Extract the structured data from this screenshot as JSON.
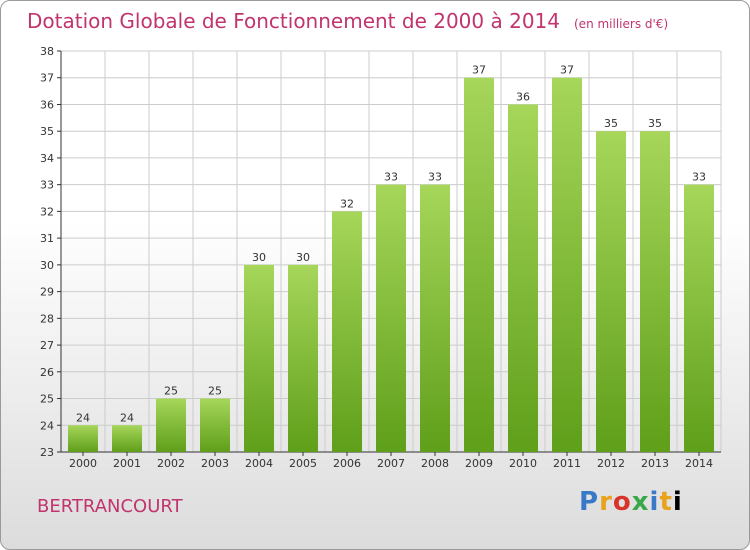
{
  "title": "Dotation Globale de Fonctionnement de 2000 à 2014",
  "unit": "(en milliers d'€)",
  "commune": "BERTRANCOURT",
  "logo": "Proxiti",
  "colors": {
    "title": "#c1346e",
    "bar_light": "#a6d65a",
    "bar_dark": "#5f9f1a",
    "grid": "#cccccc",
    "axis": "#333333"
  },
  "chart_data": {
    "type": "bar",
    "categories": [
      "2000",
      "2001",
      "2002",
      "2003",
      "2004",
      "2005",
      "2006",
      "2007",
      "2008",
      "2009",
      "2010",
      "2011",
      "2012",
      "2013",
      "2014"
    ],
    "values": [
      24,
      24,
      25,
      25,
      30,
      30,
      32,
      33,
      33,
      37,
      36,
      37,
      35,
      35,
      33
    ],
    "ylim": [
      23,
      38
    ],
    "yticks": [
      23,
      24,
      25,
      26,
      27,
      28,
      29,
      30,
      31,
      32,
      33,
      34,
      35,
      36,
      37,
      38
    ],
    "grid": true
  }
}
